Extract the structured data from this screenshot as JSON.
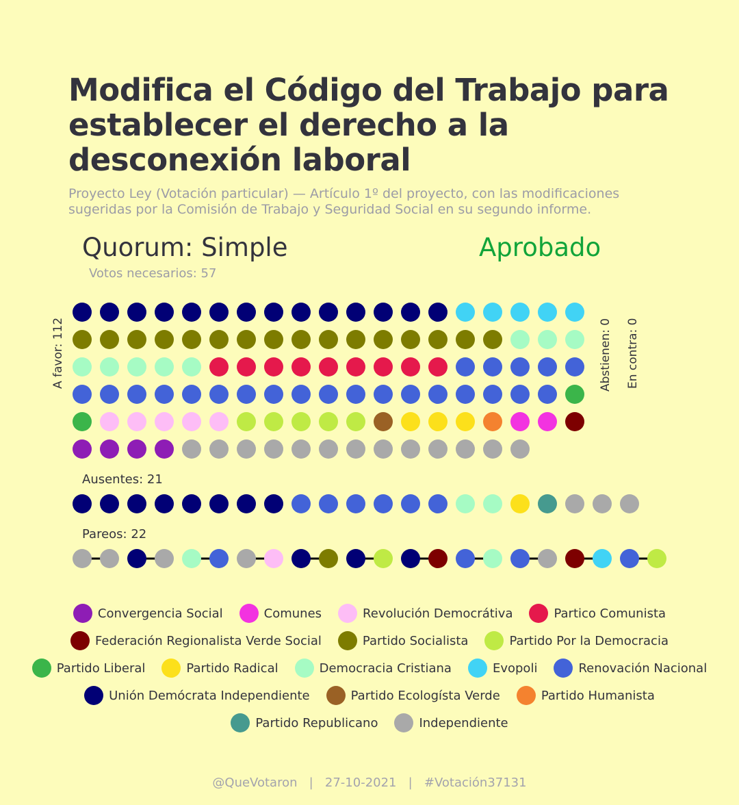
{
  "title": "Modifica el Código del Trabajo para establecer el derecho a la desconexión laboral",
  "subtitle": "Proyecto Ley (Votación particular) — Artículo 1º del proyecto, con las modificaciones sugeridas por la Comisión de Trabajo y Seguridad Social en su segundo informe.",
  "quorum": "Quorum: Simple",
  "result": "Aprobado",
  "votes_needed": "Votos necesarios: 57",
  "labels": {
    "a_favor": "A favor: 112",
    "abstienen": "Abstienen: 0",
    "en_contra": "En contra: 0",
    "ausentes": "Ausentes: 21",
    "pareos": "Pareos: 22"
  },
  "colors": {
    "background": "#fdfcbb",
    "result": "#11a43a"
  },
  "chart_data": {
    "type": "dot-matrix",
    "parties": [
      {
        "key": "CS",
        "name": "Convergencia Social",
        "color": "#8e1db5"
      },
      {
        "key": "COM",
        "name": "Comunes",
        "color": "#f233e0"
      },
      {
        "key": "RD",
        "name": "Revolución Democrátiva",
        "color": "#fdbdf6"
      },
      {
        "key": "PC",
        "name": "Partico Comunista",
        "color": "#e5194c"
      },
      {
        "key": "FRVS",
        "name": "Federación Regionalista Verde Social",
        "color": "#7d0000"
      },
      {
        "key": "PS",
        "name": "Partido Socialista",
        "color": "#7d7c00"
      },
      {
        "key": "PPD",
        "name": "Partido Por la Democracia",
        "color": "#bfea45"
      },
      {
        "key": "PL",
        "name": "Partido Liberal",
        "color": "#3bb54a"
      },
      {
        "key": "PR",
        "name": "Partido Radical",
        "color": "#fce01b"
      },
      {
        "key": "DC",
        "name": "Democracia Cristiana",
        "color": "#a6fbc4"
      },
      {
        "key": "EVO",
        "name": "Evopoli",
        "color": "#41d3f5"
      },
      {
        "key": "RN",
        "name": "Renovación Nacional",
        "color": "#4363d8"
      },
      {
        "key": "UDI",
        "name": "Unión Demócrata Independiente",
        "color": "#010075"
      },
      {
        "key": "PEV",
        "name": "Partido Ecologísta Verde",
        "color": "#9a6125"
      },
      {
        "key": "PH",
        "name": "Partido Humanista",
        "color": "#f4822f"
      },
      {
        "key": "REP",
        "name": "Partido Republicano",
        "color": "#469a8f"
      },
      {
        "key": "IND",
        "name": "Independiente",
        "color": "#a9a9a9"
      }
    ],
    "a_favor": [
      [
        "UDI",
        14
      ],
      [
        "EVO",
        5
      ],
      [
        "PS",
        16
      ],
      [
        "DC",
        8
      ],
      [
        "PC",
        9
      ],
      [
        "RN",
        23
      ],
      [
        "PL",
        2
      ],
      [
        "RD",
        5
      ],
      [
        "PPD",
        5
      ],
      [
        "PEV",
        1
      ],
      [
        "PR",
        3
      ],
      [
        "PH",
        1
      ],
      [
        "COM",
        2
      ],
      [
        "FRVS",
        1
      ],
      [
        "CS",
        4
      ],
      [
        "IND",
        13
      ]
    ],
    "ausentes": [
      [
        "UDI",
        8
      ],
      [
        "RN",
        6
      ],
      [
        "DC",
        2
      ],
      [
        "PR",
        1
      ],
      [
        "REP",
        1
      ],
      [
        "IND",
        3
      ]
    ],
    "pareos": [
      [
        "IND",
        "IND"
      ],
      [
        "UDI",
        "IND"
      ],
      [
        "DC",
        "RN"
      ],
      [
        "IND",
        "RD"
      ],
      [
        "UDI",
        "PS"
      ],
      [
        "UDI",
        "PPD"
      ],
      [
        "UDI",
        "FRVS"
      ],
      [
        "RN",
        "DC"
      ],
      [
        "RN",
        "IND"
      ],
      [
        "FRVS",
        "EVO"
      ],
      [
        "RN",
        "PPD"
      ]
    ],
    "abstienen": 0,
    "en_contra": 0
  },
  "footer": "@QueVotaron   |   27-10-2021   |   #Votación37131"
}
